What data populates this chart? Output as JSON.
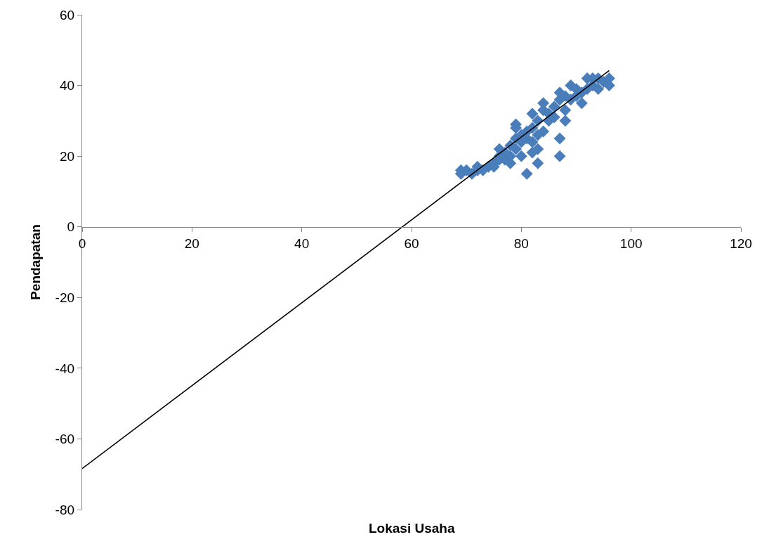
{
  "chart_data": {
    "type": "scatter",
    "xlabel": "Lokasi Usaha",
    "ylabel": "Pendapatan",
    "xlim": [
      0,
      120
    ],
    "xticks": [
      0,
      20,
      40,
      60,
      80,
      100,
      120
    ],
    "ylim": [
      -80,
      60
    ],
    "yticks": [
      -80,
      -60,
      -40,
      -20,
      0,
      20,
      40,
      60
    ],
    "marker": "diamond",
    "series": [
      {
        "color": "#4a7ebb",
        "x": [
          69,
          69,
          70,
          71,
          72,
          72,
          73,
          74,
          75,
          75,
          76,
          76,
          76,
          77,
          77,
          78,
          78,
          78,
          79,
          79,
          79,
          79,
          80,
          80,
          80,
          81,
          81,
          81,
          82,
          82,
          82,
          82,
          83,
          83,
          83,
          83,
          84,
          84,
          84,
          85,
          85,
          86,
          86,
          87,
          87,
          87,
          87,
          88,
          88,
          88,
          89,
          89,
          90,
          90,
          91,
          91,
          92,
          92,
          93,
          93,
          94,
          94,
          95,
          96,
          96
        ],
        "values": [
          16,
          15,
          16,
          15,
          16,
          17,
          16,
          17,
          18,
          17,
          19,
          20,
          22,
          21,
          19,
          18,
          20,
          23,
          22,
          25,
          29,
          28,
          20,
          24,
          26,
          15,
          25,
          27,
          21,
          24,
          28,
          32,
          18,
          22,
          26,
          30,
          27,
          33,
          35,
          30,
          32,
          31,
          34,
          25,
          20,
          36,
          38,
          30,
          33,
          37,
          36,
          40,
          37,
          39,
          35,
          38,
          39,
          42,
          40,
          42,
          39,
          42,
          41,
          40,
          42
        ]
      },
      {
        "type": "line",
        "color": "#000000",
        "marker": "none",
        "x": [
          0,
          96
        ],
        "values": [
          -68.4,
          44.2
        ]
      }
    ]
  }
}
